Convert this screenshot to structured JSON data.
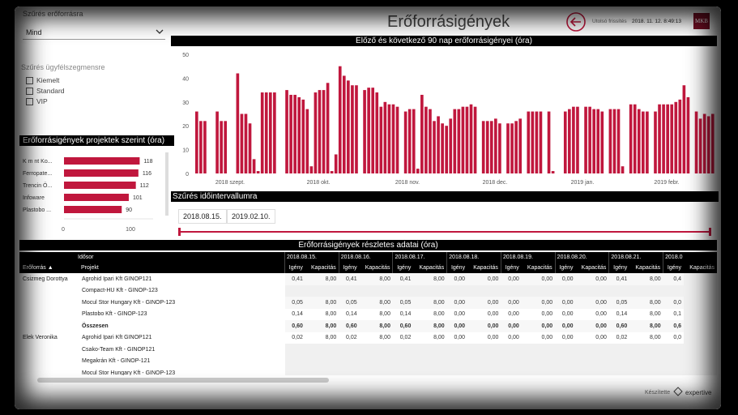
{
  "header": {
    "title": "Erőforrásigények",
    "last_update_label": "Utolsó frissítés",
    "last_update_value": "2018. 11. 12. 8:49:13",
    "logo_text": "MKB",
    "back_icon": "back-arrow-icon"
  },
  "filters": {
    "dept_label": "Szűrés erőforrásra",
    "dropdown_value": "Mind",
    "segment_label": "Szűrés ügyfélszegmensre",
    "segments": [
      "Kiemelt",
      "Standard",
      "VIP"
    ]
  },
  "projects_chart": {
    "title": "Erőforrásigények projektek szerint (óra)",
    "chart_data": {
      "type": "bar",
      "orientation": "horizontal",
      "categories": [
        "K m nt Ko...",
        "Ferropate...",
        "Trencin Ö...",
        "Infoware",
        "Plastobo ..."
      ],
      "values": [
        118,
        116,
        112,
        101,
        90
      ],
      "xlim": [
        0,
        120
      ],
      "xticks": [
        "0",
        "100"
      ],
      "color": "#c0173d"
    }
  },
  "main_chart": {
    "title": "Előző és következő 90 nap erőforrásigényei (óra)",
    "chart_data": {
      "type": "bar",
      "ylim": [
        0,
        50
      ],
      "yticks": [
        "0",
        "10",
        "20",
        "30",
        "40",
        "50"
      ],
      "xticks": [
        "2018 szept.",
        "2018 okt.",
        "2018 nov.",
        "2018 dec.",
        "2019 jan.",
        "2019 febr."
      ],
      "color": "#c0173d",
      "values": [
        26,
        22,
        22,
        0,
        0,
        26,
        22,
        22,
        0,
        0,
        42,
        25,
        25,
        21,
        6,
        1,
        34,
        34,
        34,
        34,
        0,
        0,
        35,
        33,
        33,
        32,
        31,
        27,
        3,
        34,
        35,
        35,
        38,
        1,
        8,
        45,
        41,
        39,
        37,
        37,
        0,
        35,
        36,
        36,
        34,
        28,
        30,
        29,
        29,
        28,
        0,
        26,
        27,
        27,
        2,
        33,
        28,
        27,
        22,
        24,
        21,
        20,
        23,
        27,
        27,
        28,
        28,
        29,
        28,
        0,
        22,
        22,
        22,
        23,
        21,
        0,
        21,
        21,
        22,
        23,
        0,
        26,
        26,
        26,
        26,
        0,
        26,
        1,
        0,
        0,
        26,
        27,
        28,
        28,
        0,
        28,
        28,
        27,
        27,
        26,
        0,
        27,
        27,
        27,
        3,
        0,
        29,
        29,
        27,
        26,
        26,
        0,
        26,
        29,
        29,
        29,
        29,
        30,
        31,
        37,
        32,
        0,
        26,
        23,
        25,
        24,
        25
      ]
    }
  },
  "interval": {
    "title": "Szűrés időintervallumra",
    "start": "2018.08.15.",
    "end": "2019.02.10."
  },
  "detail": {
    "title": "Erőforrásigények részletes adatai (óra)",
    "row_header_top": "Idősor",
    "col_resource": "Erőforrás",
    "col_project": "Projekt",
    "dates": [
      "2018.08.15.",
      "2018.08.16.",
      "2018.08.17.",
      "2018.08.18.",
      "2018.08.19.",
      "2018.08.20.",
      "2018.08.21.",
      "2018.0"
    ],
    "sub_cols": [
      "Igény",
      "Kapacitás"
    ],
    "rows": [
      {
        "resource": "Csizmeg Dorottya",
        "project": "Agrohid Ipari Kft GINOP121",
        "vals": [
          "0,41",
          "8,00",
          "0,41",
          "8,00",
          "0,41",
          "8,00",
          "0,00",
          "0,00",
          "0,00",
          "0,00",
          "0,00",
          "0,00",
          "0,41",
          "8,00",
          "0,4"
        ]
      },
      {
        "resource": "",
        "project": "Compact-HU Kft - GINOP-123",
        "vals": []
      },
      {
        "resource": "",
        "project": "Mocul Stor Hungary Kft - GINOP-123",
        "vals": [
          "0,05",
          "8,00",
          "0,05",
          "8,00",
          "0,05",
          "8,00",
          "0,00",
          "0,00",
          "0,00",
          "0,00",
          "0,00",
          "0,00",
          "0,05",
          "8,00",
          "0,0"
        ]
      },
      {
        "resource": "",
        "project": "Plastobo Kft - GINOP-123",
        "vals": [
          "0,14",
          "8,00",
          "0,14",
          "8,00",
          "0,14",
          "8,00",
          "0,00",
          "0,00",
          "0,00",
          "0,00",
          "0,00",
          "0,00",
          "0,14",
          "8,00",
          "0,1"
        ]
      },
      {
        "resource": "",
        "project": "Összesen",
        "total": true,
        "vals": [
          "0,60",
          "8,00",
          "0,60",
          "8,00",
          "0,60",
          "8,00",
          "0,00",
          "0,00",
          "0,00",
          "0,00",
          "0,00",
          "0,00",
          "0,60",
          "8,00",
          "0,6"
        ]
      },
      {
        "resource": "Elek Veronika",
        "project": "Agrohid Ipari Kft GINOP121",
        "vals": [
          "0,02",
          "8,00",
          "0,02",
          "8,00",
          "0,02",
          "8,00",
          "0,00",
          "0,00",
          "0,00",
          "0,00",
          "0,00",
          "0,00",
          "0,02",
          "8,00",
          "0,0"
        ]
      },
      {
        "resource": "",
        "project": "Csako-Team Kft - GINOP121",
        "vals": []
      },
      {
        "resource": "",
        "project": "Megakrán Kft - GINOP-121",
        "vals": []
      },
      {
        "resource": "",
        "project": "Mocul Stor Hungary Kft - GINOP-123",
        "vals": []
      }
    ]
  },
  "footer": {
    "made_by": "Készítette",
    "brand": "expertive"
  }
}
